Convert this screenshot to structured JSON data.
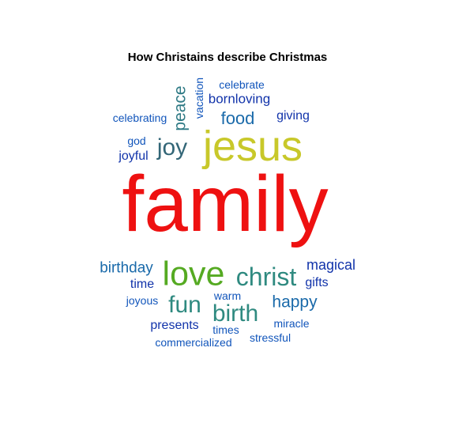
{
  "title": "How Christains describe Christmas",
  "colors": {
    "red": "#ee1111",
    "yellow_green": "#c8c82a",
    "green": "#55aa22",
    "teal": "#2f8a80",
    "dark_teal": "#336677",
    "blue": "#1155bb",
    "dark_blue": "#1133aa"
  },
  "words": [
    {
      "text": "family",
      "color": "#ee1111"
    },
    {
      "text": "jesus",
      "color": "#c8c82a"
    },
    {
      "text": "love",
      "color": "#55aa22"
    },
    {
      "text": "christ",
      "color": "#2f8a80"
    },
    {
      "text": "joy",
      "color": "#336677"
    },
    {
      "text": "fun",
      "color": "#2f8a80"
    },
    {
      "text": "birth",
      "color": "#2f8a80"
    },
    {
      "text": "peace",
      "color": "#2f7a85"
    },
    {
      "text": "food",
      "color": "#1a6aaa"
    },
    {
      "text": "happy",
      "color": "#1a6aaa"
    },
    {
      "text": "birthday",
      "color": "#1a6aaa"
    },
    {
      "text": "magical",
      "color": "#1133aa"
    },
    {
      "text": "bornloving",
      "color": "#1133aa"
    },
    {
      "text": "giving",
      "color": "#1133aa"
    },
    {
      "text": "joyful",
      "color": "#1133aa"
    },
    {
      "text": "time",
      "color": "#1133aa"
    },
    {
      "text": "gifts",
      "color": "#1133aa"
    },
    {
      "text": "presents",
      "color": "#1133aa"
    },
    {
      "text": "celebrate",
      "color": "#1155bb"
    },
    {
      "text": "celebrating",
      "color": "#1155bb"
    },
    {
      "text": "vacation",
      "color": "#1155bb"
    },
    {
      "text": "god",
      "color": "#1155bb"
    },
    {
      "text": "joyous",
      "color": "#1155bb"
    },
    {
      "text": "warm",
      "color": "#1155bb"
    },
    {
      "text": "miracle",
      "color": "#1155bb"
    },
    {
      "text": "times",
      "color": "#1155bb"
    },
    {
      "text": "commercialized",
      "color": "#1155bb"
    },
    {
      "text": "stressful",
      "color": "#1155bb"
    }
  ]
}
